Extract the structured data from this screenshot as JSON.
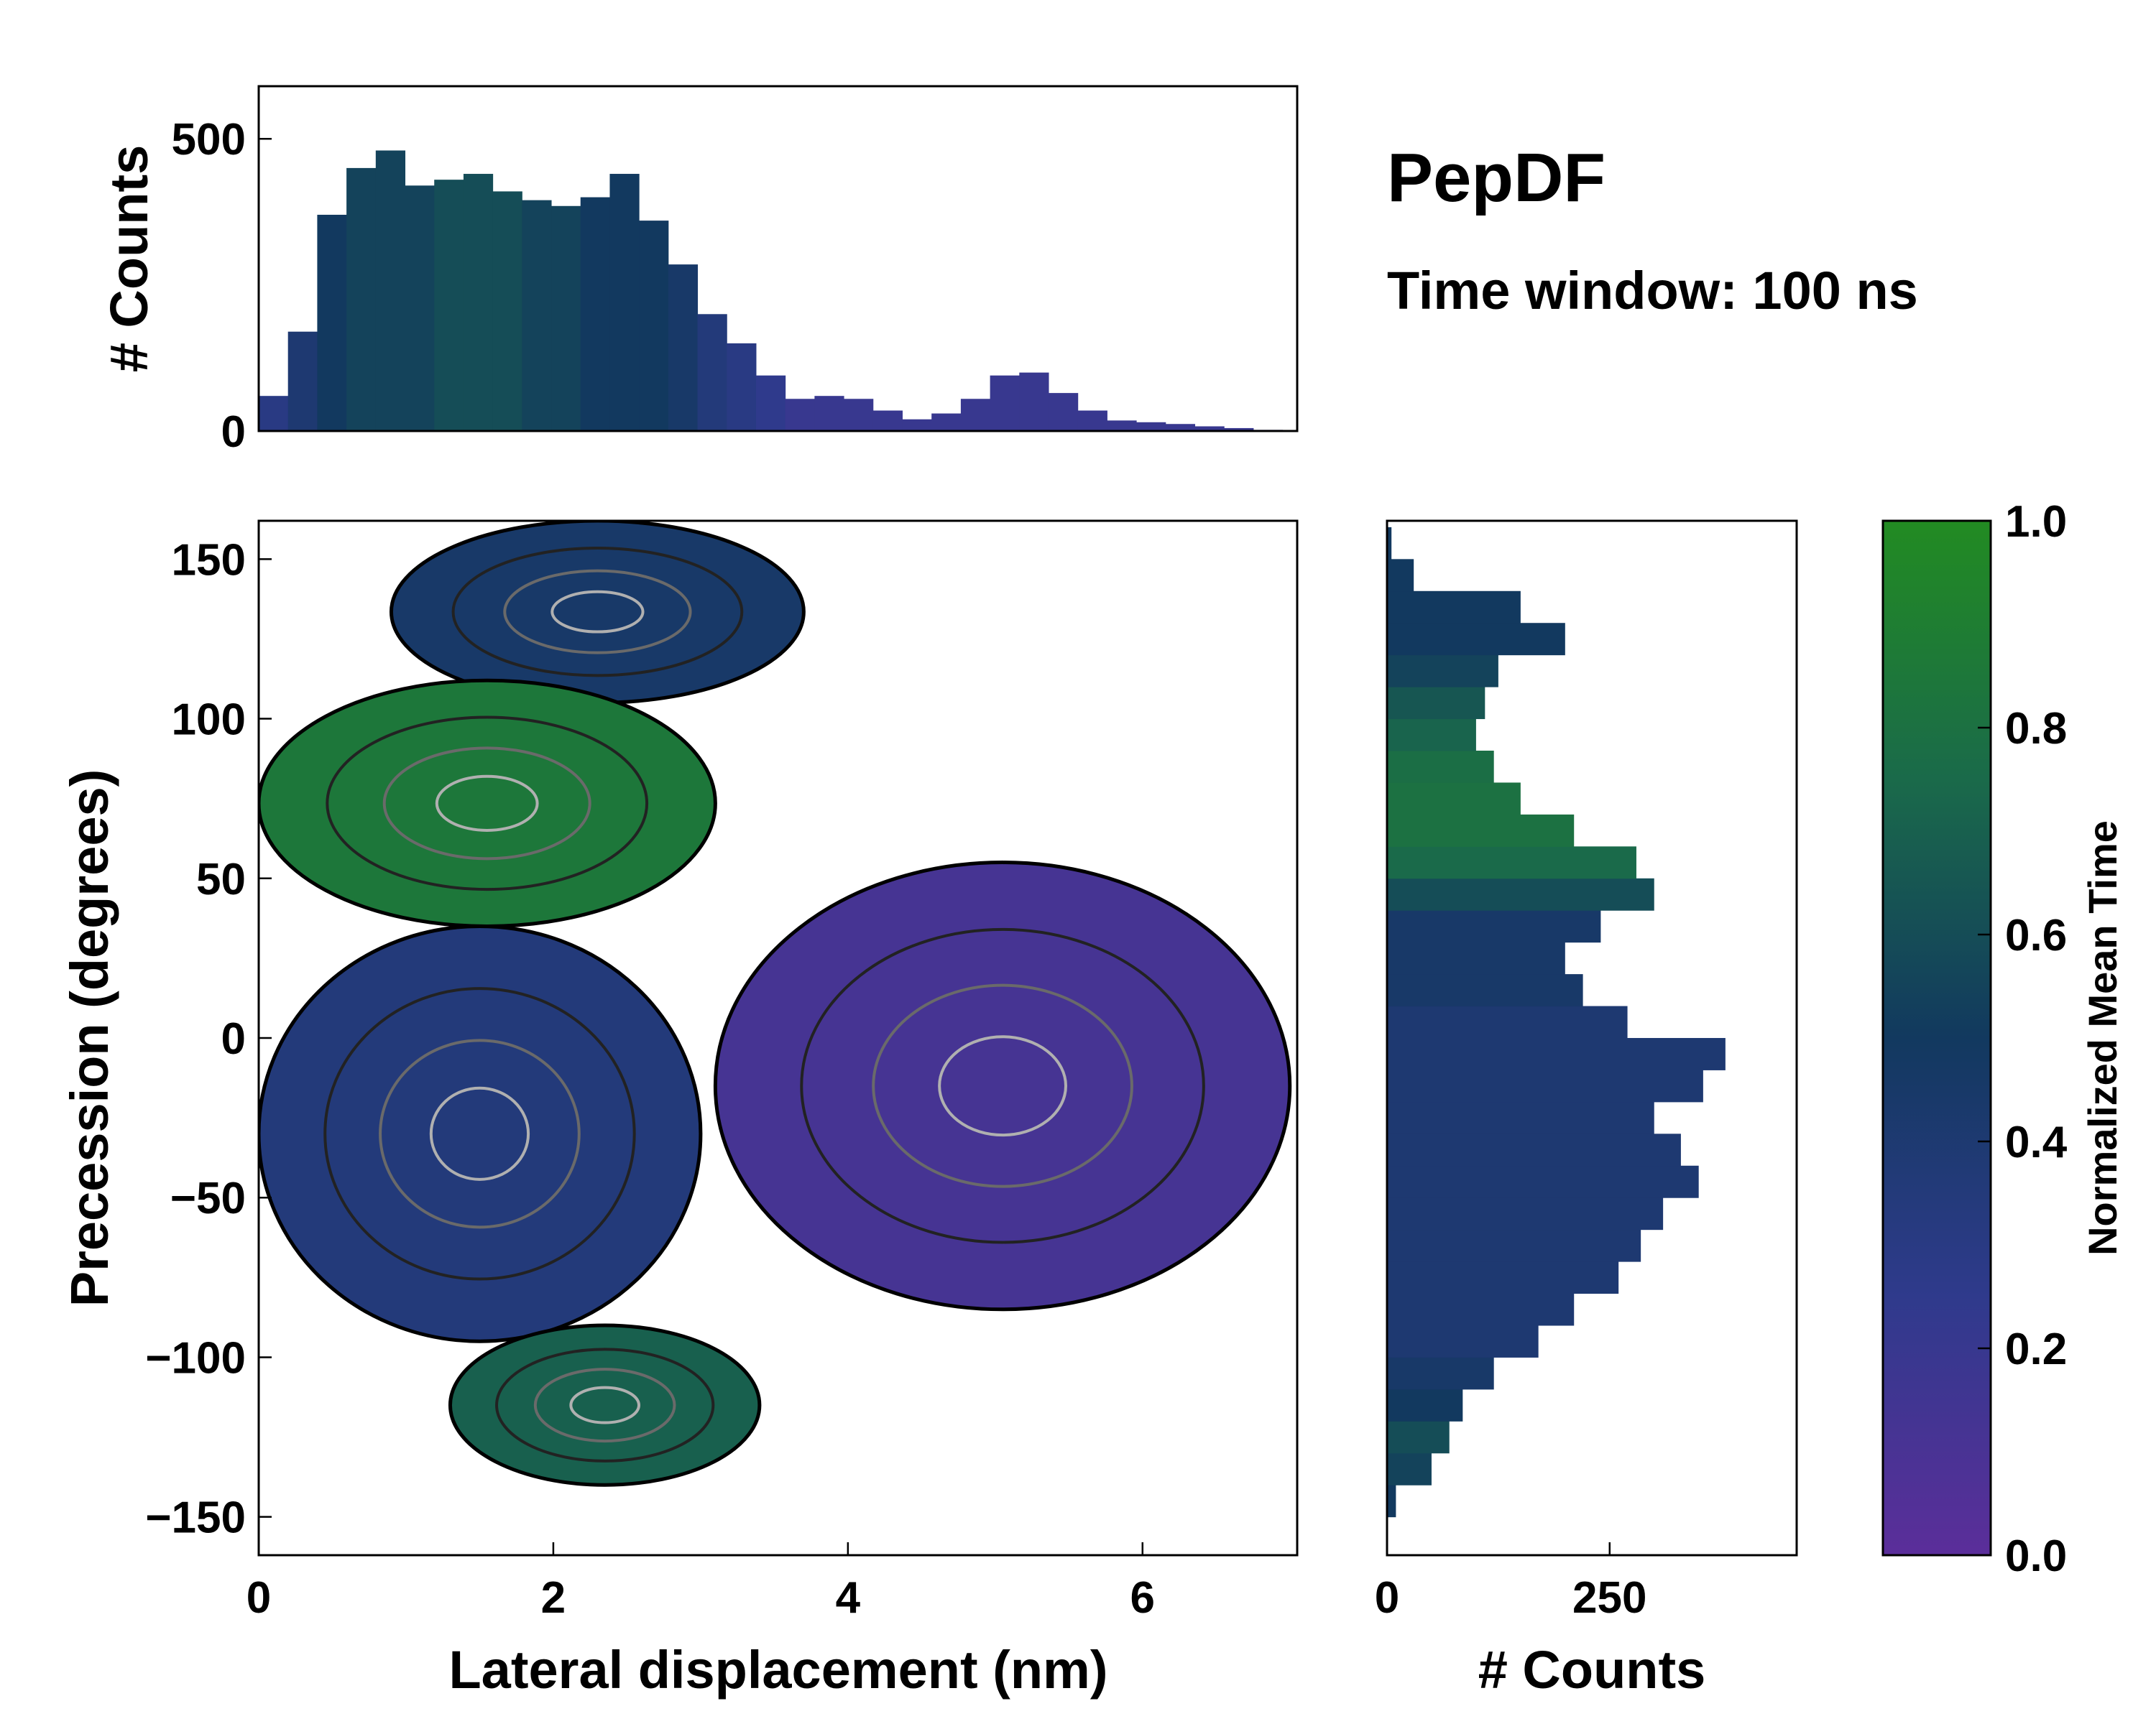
{
  "title": "PepDF",
  "subtitle": "Time window: 100 ns",
  "colors": {
    "low": "#5b2e9a",
    "mid": "#12395f",
    "high": "#228b22",
    "contour_outer": "#000000",
    "contour_inner": "#b0b0b0"
  },
  "chart_data": [
    {
      "id": "top-histogram",
      "type": "bar",
      "ylabel": "# Counts",
      "xlim": [
        0,
        7.1
      ],
      "ylim": [
        0,
        590
      ],
      "yticks": [
        0,
        500
      ],
      "ytick_labels": [
        "0",
        "500"
      ],
      "x": [
        0.1,
        0.3,
        0.5,
        0.7,
        0.9,
        1.1,
        1.3,
        1.5,
        1.7,
        1.9,
        2.1,
        2.3,
        2.5,
        2.7,
        2.9,
        3.1,
        3.3,
        3.5,
        3.7,
        3.9,
        4.1,
        4.3,
        4.5,
        4.7,
        4.9,
        5.1,
        5.3,
        5.5,
        5.7,
        5.9,
        6.1,
        6.3,
        6.5,
        6.7,
        6.9
      ],
      "values": [
        60,
        170,
        370,
        450,
        480,
        420,
        430,
        440,
        410,
        395,
        385,
        400,
        440,
        360,
        285,
        200,
        150,
        95,
        55,
        60,
        55,
        35,
        20,
        30,
        55,
        95,
        100,
        65,
        35,
        18,
        15,
        12,
        8,
        5,
        2
      ],
      "color_values": [
        0.3,
        0.4,
        0.5,
        0.55,
        0.55,
        0.55,
        0.6,
        0.6,
        0.6,
        0.55,
        0.55,
        0.5,
        0.5,
        0.5,
        0.45,
        0.35,
        0.3,
        0.25,
        0.2,
        0.2,
        0.2,
        0.2,
        0.2,
        0.2,
        0.2,
        0.2,
        0.2,
        0.2,
        0.2,
        0.2,
        0.2,
        0.2,
        0.2,
        0.2,
        0.2
      ]
    },
    {
      "id": "main-2d-histogram",
      "type": "heatmap",
      "xlabel": "Lateral displacement (nm)",
      "ylabel": "Precession (degrees)",
      "xlim": [
        0,
        7.05
      ],
      "ylim": [
        -162,
        162
      ],
      "xticks": [
        0,
        2,
        4,
        6
      ],
      "xtick_labels": [
        "0",
        "2",
        "4",
        "6"
      ],
      "yticks": [
        -150,
        -100,
        -50,
        0,
        50,
        100,
        150
      ],
      "ytick_labels": [
        "−150",
        "−100",
        "−50",
        "0",
        "50",
        "100",
        "150"
      ],
      "colorbar_label": "Normalized Mean Time",
      "regions": [
        {
          "name": "cluster-top",
          "x_range": [
            0.9,
            3.7
          ],
          "y_range": [
            105,
            162
          ],
          "color_value": 0.45
        },
        {
          "name": "cluster-upper-left",
          "x_range": [
            0.0,
            3.1
          ],
          "y_range": [
            35,
            112
          ],
          "color_value": 0.85
        },
        {
          "name": "cluster-middle",
          "x_range": [
            0.0,
            3.0
          ],
          "y_range": [
            -95,
            35
          ],
          "color_value": 0.35
        },
        {
          "name": "cluster-right",
          "x_range": [
            3.1,
            7.0
          ],
          "y_range": [
            -85,
            55
          ],
          "color_value": 0.12
        },
        {
          "name": "cluster-bottom",
          "x_range": [
            1.3,
            3.4
          ],
          "y_range": [
            -140,
            -90
          ],
          "color_value": 0.7
        }
      ]
    },
    {
      "id": "right-histogram",
      "type": "bar",
      "orientation": "horizontal",
      "xlabel": "# Counts",
      "xlim": [
        0,
        460
      ],
      "xticks": [
        0,
        250
      ],
      "xtick_labels": [
        "0",
        "250"
      ],
      "y": [
        -145,
        -135,
        -125,
        -115,
        -105,
        -95,
        -85,
        -75,
        -65,
        -55,
        -45,
        -35,
        -25,
        -15,
        -5,
        5,
        15,
        25,
        35,
        45,
        55,
        65,
        75,
        85,
        95,
        105,
        115,
        125,
        135,
        145,
        155
      ],
      "values": [
        10,
        50,
        70,
        85,
        120,
        170,
        210,
        260,
        285,
        310,
        350,
        330,
        300,
        355,
        380,
        270,
        220,
        200,
        240,
        300,
        280,
        210,
        150,
        120,
        100,
        110,
        125,
        200,
        150,
        30,
        5
      ],
      "color_values": [
        0.5,
        0.55,
        0.6,
        0.5,
        0.45,
        0.4,
        0.4,
        0.4,
        0.4,
        0.4,
        0.4,
        0.4,
        0.4,
        0.4,
        0.4,
        0.4,
        0.45,
        0.45,
        0.45,
        0.6,
        0.75,
        0.8,
        0.8,
        0.78,
        0.72,
        0.65,
        0.55,
        0.5,
        0.5,
        0.5,
        0.5
      ]
    },
    {
      "id": "colorbar",
      "type": "colorbar",
      "label": "Normalized Mean Time",
      "ylim": [
        0,
        1
      ],
      "ticks": [
        0.0,
        0.2,
        0.4,
        0.6,
        0.8,
        1.0
      ],
      "tick_labels": [
        "0.0",
        "0.2",
        "0.4",
        "0.6",
        "0.8",
        "1.0"
      ]
    }
  ]
}
